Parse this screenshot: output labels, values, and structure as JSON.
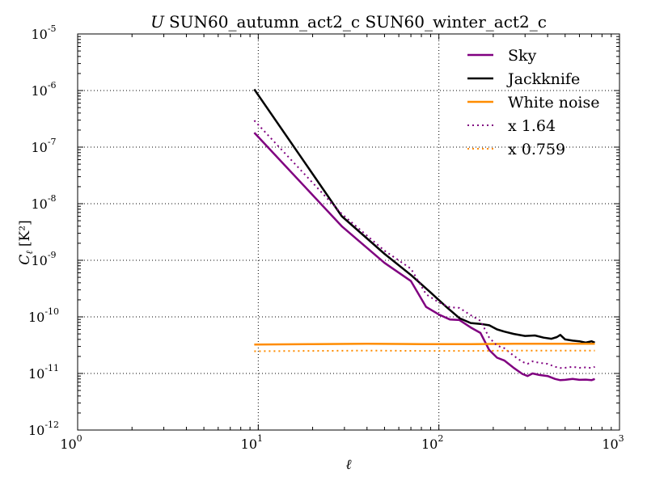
{
  "chart_data": {
    "type": "line",
    "title_italic": "U",
    "title": "SUN60_autumn_act2_c SUN60_winter_act2_c",
    "xlabel": "ℓ",
    "ylabel_main": "C",
    "ylabel_sub": "ℓ",
    "ylabel_unit": "[K²]",
    "xscale": "log",
    "yscale": "log",
    "xlim": [
      1,
      1000
    ],
    "ylim": [
      1e-12,
      1e-05
    ],
    "grid": true,
    "legend_position": "top-right",
    "x_ticks": [
      {
        "value": 1,
        "base": "10",
        "exp": "0"
      },
      {
        "value": 10,
        "base": "10",
        "exp": "1"
      },
      {
        "value": 100,
        "base": "10",
        "exp": "2"
      },
      {
        "value": 1000,
        "base": "10",
        "exp": "3"
      }
    ],
    "y_ticks": [
      {
        "value": 1e-12,
        "base": "10",
        "exp": "-12"
      },
      {
        "value": 1e-11,
        "base": "10",
        "exp": "-11"
      },
      {
        "value": 1e-10,
        "base": "10",
        "exp": "-10"
      },
      {
        "value": 1e-09,
        "base": "10",
        "exp": "-9"
      },
      {
        "value": 1e-08,
        "base": "10",
        "exp": "-8"
      },
      {
        "value": 1e-07,
        "base": "10",
        "exp": "-7"
      },
      {
        "value": 1e-06,
        "base": "10",
        "exp": "-6"
      },
      {
        "value": 1e-05,
        "base": "10",
        "exp": "-5"
      }
    ],
    "series": [
      {
        "name": "Sky",
        "color": "#800080",
        "style": "solid",
        "x": [
          9.5,
          29,
          50,
          70,
          85,
          100,
          115,
          130,
          150,
          170,
          190,
          210,
          230,
          260,
          290,
          310,
          330,
          360,
          400,
          440,
          470,
          500,
          550,
          600,
          650,
          700,
          730
        ],
        "y": [
          1.8e-07,
          4e-09,
          9e-10,
          4.3e-10,
          1.5e-10,
          1.1e-10,
          9e-11,
          8.8e-11,
          6.5e-11,
          5.2e-11,
          2.6e-11,
          1.9e-11,
          1.7e-11,
          1.25e-11,
          9.8e-12,
          9e-12,
          1e-11,
          9.4e-12,
          9e-12,
          8e-12,
          7.6e-12,
          7.7e-12,
          8e-12,
          7.7e-12,
          7.8e-12,
          7.6e-12,
          8e-12
        ]
      },
      {
        "name": "Jackknife",
        "color": "#000000",
        "style": "solid",
        "x": [
          9.5,
          29,
          50,
          70,
          90,
          110,
          130,
          150,
          170,
          190,
          210,
          230,
          260,
          300,
          340,
          380,
          420,
          450,
          470,
          500,
          550,
          600,
          650,
          700,
          730
        ],
        "y": [
          1.05e-06,
          6e-09,
          1.3e-09,
          5.5e-10,
          2.7e-10,
          1.5e-10,
          9.5e-11,
          7.8e-11,
          7.5e-11,
          7.1e-11,
          6e-11,
          5.5e-11,
          5e-11,
          4.6e-11,
          4.7e-11,
          4.3e-11,
          4.1e-11,
          4.4e-11,
          4.8e-11,
          4e-11,
          3.8e-11,
          3.7e-11,
          3.5e-11,
          3.7e-11,
          3.5e-11
        ]
      },
      {
        "name": "White noise",
        "color": "#ff8c00",
        "style": "solid",
        "x": [
          9.5,
          20,
          40,
          80,
          150,
          300,
          500,
          730
        ],
        "y": [
          3.25e-11,
          3.3e-11,
          3.35e-11,
          3.3e-11,
          3.3e-11,
          3.35e-11,
          3.35e-11,
          3.35e-11
        ]
      },
      {
        "name": "x 1.64",
        "color": "#800080",
        "style": "dotted",
        "x": [
          9.5,
          29,
          50,
          70,
          85,
          100,
          115,
          130,
          150,
          170,
          190,
          210,
          230,
          260,
          290,
          310,
          330,
          360,
          400,
          440,
          470,
          500,
          550,
          600,
          650,
          700,
          730
        ],
        "y": [
          2.95e-07,
          6.6e-09,
          1.48e-09,
          7.1e-10,
          2.5e-10,
          1.8e-10,
          1.48e-10,
          1.44e-10,
          1.07e-10,
          8.5e-11,
          4.3e-11,
          3.1e-11,
          2.8e-11,
          2.05e-11,
          1.6e-11,
          1.48e-11,
          1.64e-11,
          1.54e-11,
          1.48e-11,
          1.31e-11,
          1.25e-11,
          1.26e-11,
          1.31e-11,
          1.26e-11,
          1.28e-11,
          1.25e-11,
          1.31e-11
        ]
      },
      {
        "name": "x 0.759",
        "color": "#ff8c00",
        "style": "dotted",
        "x": [
          9.5,
          20,
          40,
          80,
          150,
          300,
          500,
          730
        ],
        "y": [
          2.47e-11,
          2.5e-11,
          2.54e-11,
          2.5e-11,
          2.5e-11,
          2.54e-11,
          2.54e-11,
          2.54e-11
        ]
      }
    ]
  }
}
